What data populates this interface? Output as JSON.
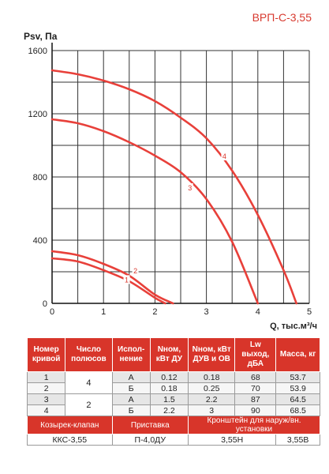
{
  "model": "ВРП-С-3,55",
  "chart_data": {
    "type": "line",
    "ylabel": "Psv, Па",
    "xlabel": "Q, тыс.м³/ч",
    "xlim": [
      0,
      5
    ],
    "ylim": [
      0,
      1600
    ],
    "x_ticks": [
      0,
      1,
      2,
      3,
      4,
      5
    ],
    "y_ticks": [
      0,
      400,
      800,
      1200,
      1600
    ],
    "grid": true,
    "series": [
      {
        "name": "1",
        "color": "#e8403a",
        "x": [
          0,
          0.5,
          1,
          1.5,
          2,
          2.2
        ],
        "y": [
          285,
          265,
          210,
          140,
          35,
          0
        ]
      },
      {
        "name": "2",
        "color": "#e8403a",
        "x": [
          0,
          0.5,
          1,
          1.5,
          2,
          2.35
        ],
        "y": [
          330,
          305,
          250,
          175,
          55,
          0
        ]
      },
      {
        "name": "3",
        "color": "#e8403a",
        "x": [
          0,
          0.5,
          1,
          1.5,
          2,
          2.5,
          3,
          3.5,
          4
        ],
        "y": [
          1165,
          1140,
          1090,
          1020,
          935,
          830,
          660,
          390,
          0
        ]
      },
      {
        "name": "4",
        "color": "#e8403a",
        "x": [
          0,
          0.5,
          1,
          1.5,
          2,
          2.5,
          3,
          3.5,
          4,
          4.5,
          4.75
        ],
        "y": [
          1475,
          1450,
          1410,
          1355,
          1280,
          1175,
          1045,
          840,
          560,
          210,
          0
        ]
      }
    ],
    "curve_labels": [
      {
        "text": "1",
        "x": 1.45,
        "y": 148
      },
      {
        "text": "2",
        "x": 1.62,
        "y": 205
      },
      {
        "text": "3",
        "x": 2.68,
        "y": 730
      },
      {
        "text": "4",
        "x": 3.35,
        "y": 930
      }
    ]
  },
  "table": {
    "headers": [
      "Номер кривой",
      "Число полюсов",
      "Испол-нение",
      "Nном, кВт ДУ",
      "Nном, кВт ДУВ и ОВ",
      "Lw выход, дБА",
      "Масса, кг"
    ],
    "poles": [
      "4",
      "2"
    ],
    "rows": [
      {
        "curve": "1",
        "version": "А",
        "n_du": "0.12",
        "n_duv": "0.18",
        "lw": "68",
        "mass": "53.7"
      },
      {
        "curve": "2",
        "version": "Б",
        "n_du": "0.18",
        "n_duv": "0.25",
        "lw": "70",
        "mass": "53.9"
      },
      {
        "curve": "3",
        "version": "А",
        "n_du": "1.5",
        "n_duv": "2.2",
        "lw": "87",
        "mass": "64.5"
      },
      {
        "curve": "4",
        "version": "Б",
        "n_du": "2.2",
        "n_duv": "3",
        "lw": "90",
        "mass": "68.5"
      }
    ],
    "accessories": {
      "labels": [
        "Козырек-клапан",
        "Приставка",
        "Кронштейн для наруж/вн. установки"
      ],
      "values": [
        "ККС-3,55",
        "П-4,0ДУ",
        "3,55Н",
        "3,55В"
      ]
    }
  }
}
